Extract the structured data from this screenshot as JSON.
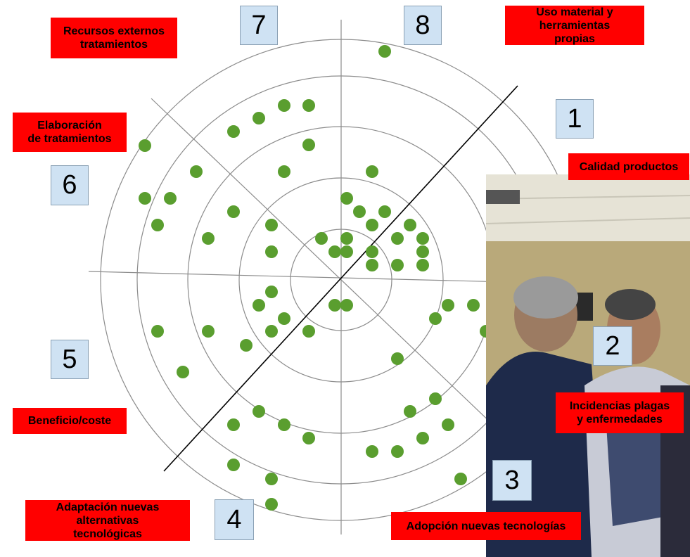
{
  "sector_numbers": [
    "1",
    "2",
    "3",
    "4",
    "5",
    "6",
    "7",
    "8"
  ],
  "sector_labels": {
    "calidad": "Calidad productos",
    "incidencias": "Incidencias plagas\ny enfermedades",
    "adopcion": "Adopción nuevas tecnologías",
    "adaptacion": "Adaptación nuevas\nalternativas\ntecnológicas",
    "beneficio": "Beneficio/coste",
    "elaboracion": "Elaboración\nde tratamientos",
    "recursos": "Recursos externos\ntratamientos",
    "uso": "Uso material y\nherramientas\npropias"
  },
  "colors": {
    "label_fill": "#ff0000",
    "number_box_fill": "#cfe2f3",
    "dot": "#5a9e2f",
    "circle_stroke": "#8c8c8c",
    "axis_stroke": "#8c8c8c",
    "diagonal_stroke": "#000000"
  },
  "photo": {
    "description_icon": "photo-of-people-indoors"
  }
}
